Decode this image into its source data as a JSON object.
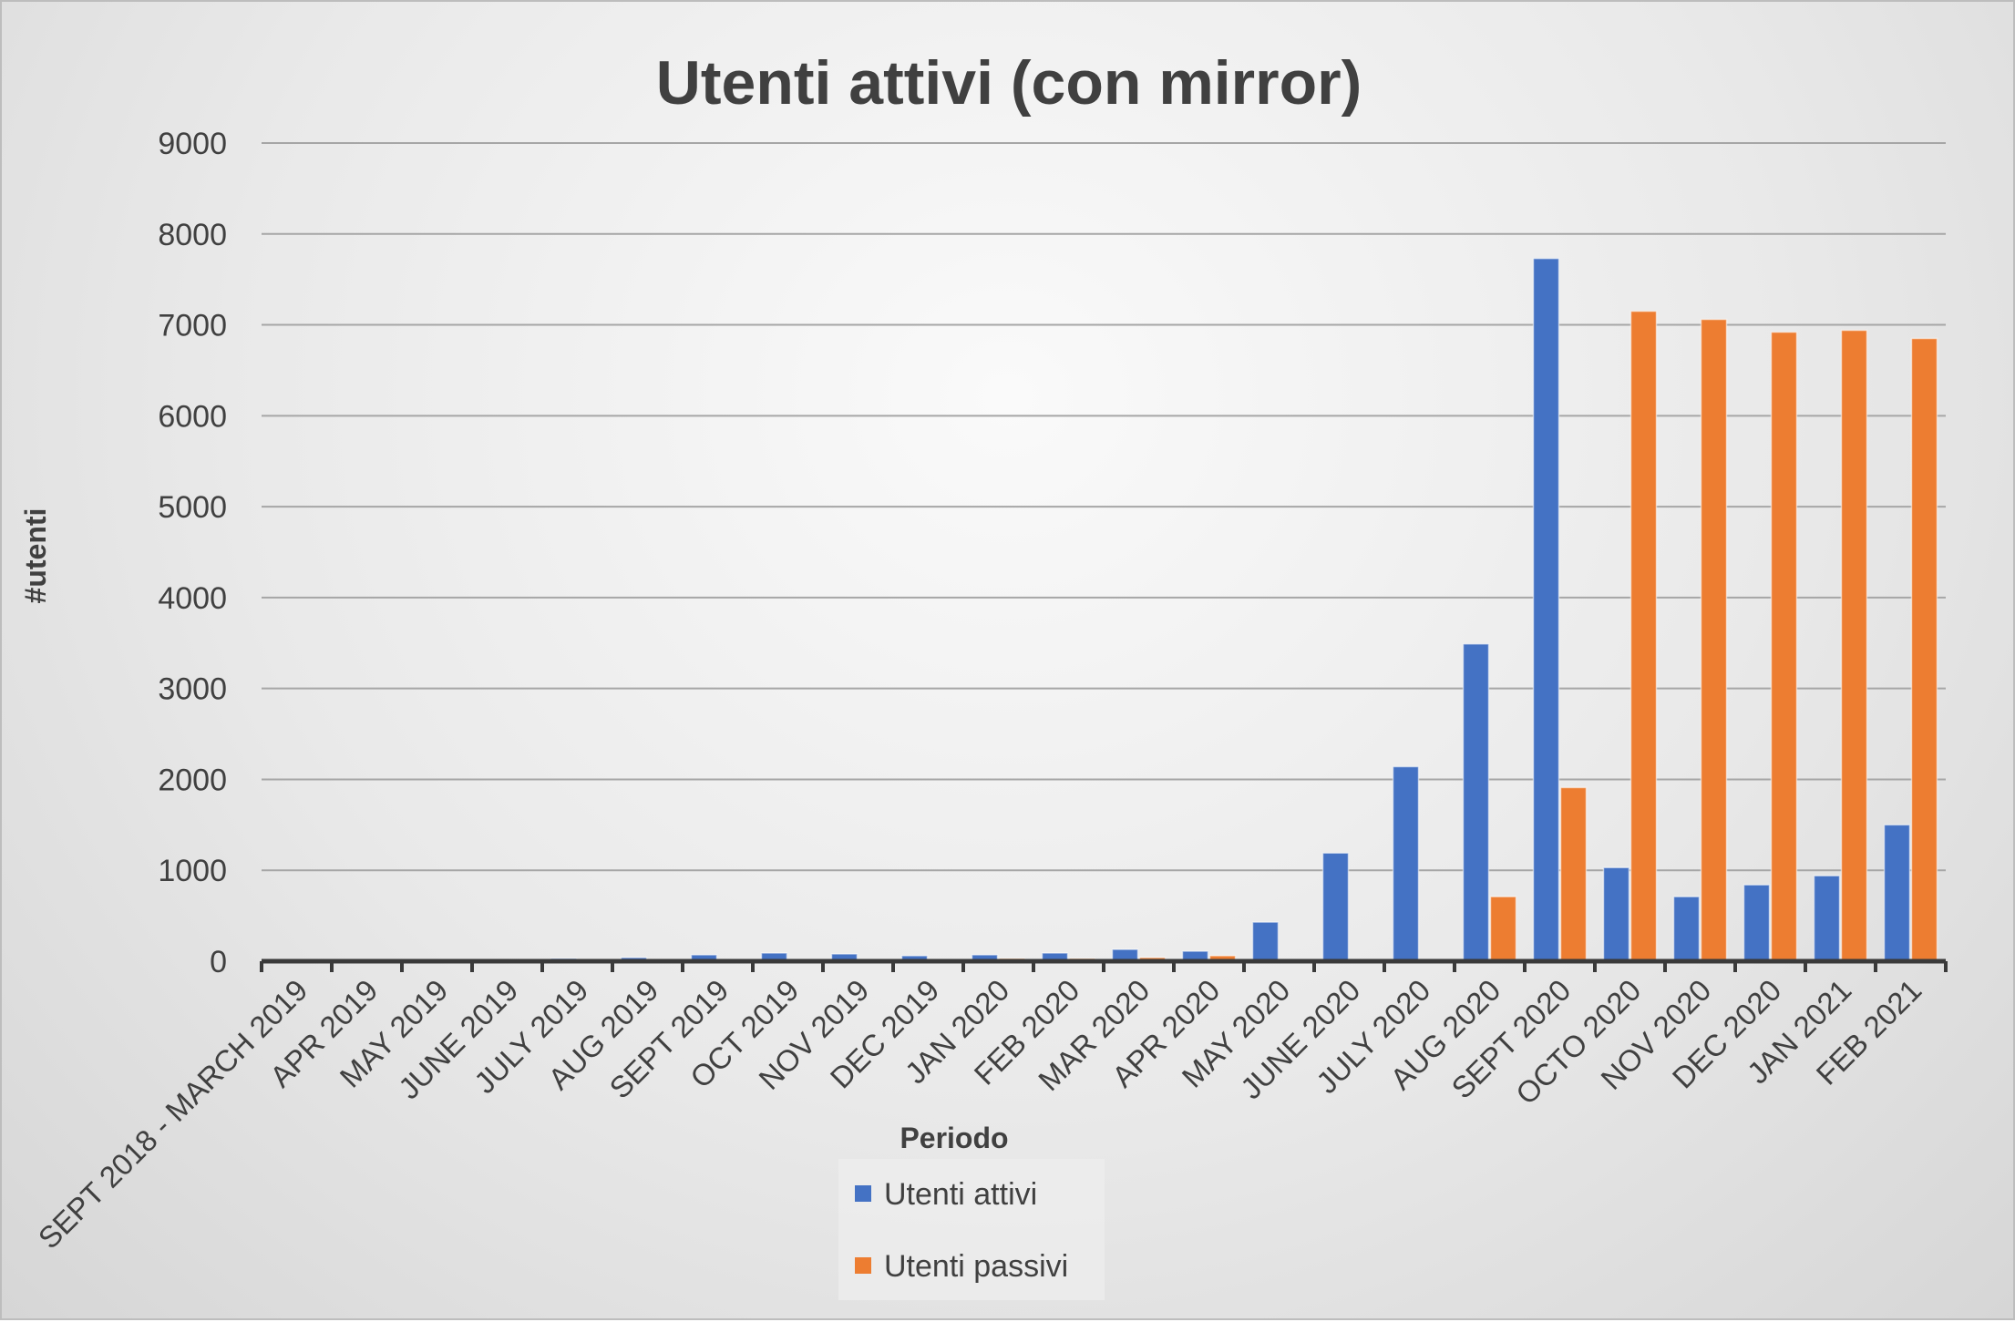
{
  "chart_data": {
    "type": "bar",
    "title": "Utenti attivi (con mirror)",
    "xlabel": "Periodo",
    "ylabel": "#utenti",
    "ylim": [
      0,
      9000
    ],
    "yticks": [
      0,
      1000,
      2000,
      3000,
      4000,
      5000,
      6000,
      7000,
      8000,
      9000
    ],
    "grid": true,
    "legend_position": "bottom",
    "categories": [
      "SEPT 2018 - MARCH 2019",
      "APR 2019",
      "MAY 2019",
      "JUNE 2019",
      "JULY 2019",
      "AUG 2019",
      "SEPT 2019",
      "OCT 2019",
      "NOV 2019",
      "DEC 2019",
      "JAN 2020",
      "FEB 2020",
      "MAR 2020",
      "APR 2020",
      "MAY 2020",
      "JUNE 2020",
      "JULY 2020",
      "AUG 2020",
      "SEPT 2020",
      "OCTO 2020",
      "NOV 2020",
      "DEC 2020",
      "JAN 2021",
      "FEB 2021"
    ],
    "series": [
      {
        "name": "Utenti attivi",
        "color": "#4472C4",
        "values": [
          5,
          10,
          10,
          15,
          30,
          40,
          70,
          90,
          80,
          60,
          70,
          90,
          130,
          110,
          430,
          1190,
          2140,
          3490,
          7730,
          1030,
          710,
          840,
          940,
          1500
        ]
      },
      {
        "name": "Utenti passivi",
        "color": "#ED7D31",
        "values": [
          0,
          0,
          0,
          0,
          0,
          0,
          0,
          0,
          0,
          0,
          30,
          30,
          40,
          60,
          0,
          10,
          0,
          710,
          1910,
          7150,
          7060,
          6920,
          6940,
          6850
        ]
      }
    ]
  }
}
